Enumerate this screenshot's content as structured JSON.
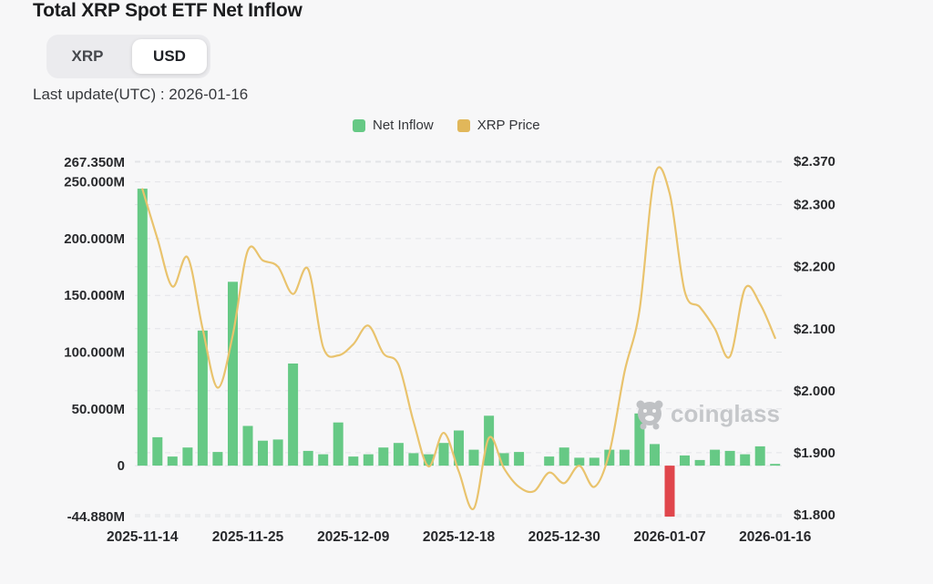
{
  "header": {
    "title": "Total XRP Spot ETF Net Inflow",
    "toggle": {
      "options": [
        "XRP",
        "USD"
      ],
      "selected": "USD"
    },
    "last_update": "Last update(UTC) : 2026-01-16"
  },
  "legend": [
    {
      "label": "Net Inflow",
      "color": "#66c985"
    },
    {
      "label": "XRP Price",
      "color": "#e1b75a"
    }
  ],
  "watermark": {
    "text": "coinglass",
    "icon": "coinglass-pig-logo",
    "color": "#c5c7ca"
  },
  "colors": {
    "bar_positive": "#66c985",
    "bar_negative": "#e0464c",
    "price_line": "#e9c36d",
    "grid": "#e3e4e7",
    "axis_text": "#28292c",
    "background": "#f7f7f8"
  },
  "chart_data": {
    "type": "bar+line combo",
    "title": "Total XRP Spot ETF Net Inflow",
    "x_count": 43,
    "x_tick_labels": [
      {
        "label": "2025-11-14",
        "index": 0
      },
      {
        "label": "2025-11-25",
        "index": 7
      },
      {
        "label": "2025-12-09",
        "index": 14
      },
      {
        "label": "2025-12-18",
        "index": 21
      },
      {
        "label": "2025-12-30",
        "index": 28
      },
      {
        "label": "2026-01-07",
        "index": 35
      },
      {
        "label": "2026-01-16",
        "index": 42
      }
    ],
    "series": [
      {
        "name": "Net Inflow",
        "type": "bar",
        "axis": "left",
        "unit": "M (USD)",
        "values": [
          244,
          25,
          8,
          16,
          119,
          12,
          162,
          35,
          22,
          23,
          90,
          13,
          10,
          38,
          8,
          10,
          16,
          20,
          11,
          10,
          20,
          31,
          14,
          44,
          11,
          12,
          0,
          8,
          16,
          7,
          7,
          14,
          14,
          46,
          19,
          -44.88,
          9,
          5,
          14,
          13,
          10,
          17,
          1.5
        ]
      },
      {
        "name": "XRP Price",
        "type": "line",
        "axis": "right",
        "unit": "USD",
        "values": [
          2.325,
          2.245,
          2.168,
          2.215,
          2.1,
          2.005,
          2.09,
          2.226,
          2.21,
          2.2,
          2.156,
          2.196,
          2.07,
          2.057,
          2.075,
          2.105,
          2.06,
          2.042,
          1.95,
          1.878,
          1.932,
          1.87,
          1.81,
          1.924,
          1.875,
          1.845,
          1.838,
          1.868,
          1.851,
          1.879,
          1.845,
          1.9,
          2.03,
          2.13,
          2.347,
          2.318,
          2.16,
          2.135,
          2.1,
          2.055,
          2.165,
          2.14,
          2.085
        ]
      }
    ],
    "left_axis": {
      "range": [
        -44.88,
        267.35
      ],
      "ticks": [
        {
          "label": "267.350M",
          "value": 267.35
        },
        {
          "label": "250.000M",
          "value": 250
        },
        {
          "label": "200.000M",
          "value": 200
        },
        {
          "label": "150.000M",
          "value": 150
        },
        {
          "label": "100.000M",
          "value": 100
        },
        {
          "label": "50.000M",
          "value": 50
        },
        {
          "label": "0",
          "value": 0
        },
        {
          "label": "-44.880M",
          "value": -44.88
        }
      ]
    },
    "right_axis": {
      "range": [
        1.8,
        2.37
      ],
      "ticks": [
        {
          "label": "$2.370",
          "value": 2.37
        },
        {
          "label": "$2.300",
          "value": 2.3
        },
        {
          "label": "$2.200",
          "value": 2.2
        },
        {
          "label": "$2.100",
          "value": 2.1
        },
        {
          "label": "$2.000",
          "value": 2.0
        },
        {
          "label": "$1.900",
          "value": 1.9
        },
        {
          "label": "$1.800",
          "value": 1.8
        }
      ]
    },
    "grid": "horizontal dashed, both axes tick sets",
    "legend_position": "top-center"
  }
}
